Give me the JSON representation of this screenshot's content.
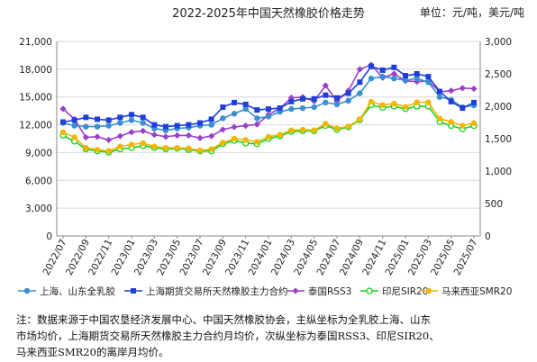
{
  "header": {
    "title": "2022-2025年中国天然橡胶价格走势",
    "unit": "单位：元/吨，美元/吨"
  },
  "note": {
    "lines": [
      "注：数据来源于中国农垦经济发展中心、中国天然橡胶协会，主纵坐标为全乳胶上海、山东",
      "市场均价，上海期货交易所天然橡胶主力合约月均价，次纵坐标为泰国RSS3、印尼SIR20、",
      "马来西亚SMR20的离岸月均价。"
    ]
  },
  "chart_data": {
    "type": "line",
    "x": [
      "2022/07",
      "2022/08",
      "2022/09",
      "2022/10",
      "2022/11",
      "2022/12",
      "2023/01",
      "2023/02",
      "2023/03",
      "2023/04",
      "2023/05",
      "2023/06",
      "2023/07",
      "2023/08",
      "2023/09",
      "2023/10",
      "2023/11",
      "2023/12",
      "2024/01",
      "2024/02",
      "2024/03",
      "2024/04",
      "2024/05",
      "2024/06",
      "2024/07",
      "2024/08",
      "2024/09",
      "2024/10",
      "2024/11",
      "2024/12",
      "2025/01",
      "2025/02",
      "2025/03",
      "2025/04",
      "2025/05",
      "2025/06",
      "2025/07"
    ],
    "x_tick_labels": [
      "2022/07",
      "2022/09",
      "2022/11",
      "2023/01",
      "2023/03",
      "2023/05",
      "2023/07",
      "2023/09",
      "2023/11",
      "2024/01",
      "2024/03",
      "2024/05",
      "2024/07",
      "2024/09",
      "2024/11",
      "2025/01",
      "2025/03",
      "2025/05",
      "2025/07"
    ],
    "y_left": {
      "min": 0,
      "max": 21000,
      "ticks": [
        0,
        3000,
        6000,
        9000,
        12000,
        15000,
        18000,
        21000
      ],
      "tick_labels": [
        "0",
        "3,000",
        "6,000",
        "9,000",
        "12,000",
        "15,000",
        "18,000",
        "21,000"
      ]
    },
    "y_right": {
      "min": 0,
      "max": 3000,
      "ticks": [
        0,
        500,
        1000,
        1500,
        2000,
        2500,
        3000
      ],
      "tick_labels": [
        "0",
        "500",
        "1,000",
        "1,500",
        "2,000",
        "2,500",
        "3,000"
      ]
    },
    "grid": "horizontal",
    "legend_position": "bottom",
    "series": [
      {
        "name": "上海、山东全乳胶",
        "axis": "left",
        "marker": "circle",
        "color": "#3a8fd1",
        "values": [
          12200,
          11900,
          11800,
          11800,
          11900,
          12200,
          12500,
          12200,
          11600,
          11400,
          11600,
          11700,
          11900,
          12000,
          12700,
          13200,
          13700,
          12700,
          12900,
          13400,
          13700,
          13800,
          13900,
          14400,
          14200,
          14600,
          15400,
          17000,
          17200,
          17000,
          16800,
          17000,
          16600,
          15000,
          14700,
          13900,
          14100
        ]
      },
      {
        "name": "上海期货交易所天然橡胶主力合约",
        "axis": "left",
        "marker": "square",
        "color": "#1f3fd9",
        "values": [
          12300,
          12500,
          12800,
          12600,
          12500,
          12800,
          13100,
          12800,
          12000,
          11800,
          11900,
          12000,
          12200,
          12600,
          13900,
          14400,
          14200,
          13600,
          13700,
          13800,
          14500,
          14800,
          14800,
          15200,
          14900,
          15400,
          16600,
          18300,
          17900,
          18200,
          17300,
          17500,
          17200,
          15600,
          14500,
          13800,
          14400
        ]
      },
      {
        "name": "泰国RSS3",
        "axis": "right",
        "marker": "diamond",
        "color": "#9b3fc9",
        "values": [
          1960,
          1800,
          1520,
          1530,
          1480,
          1540,
          1600,
          1620,
          1560,
          1530,
          1550,
          1550,
          1510,
          1540,
          1640,
          1680,
          1700,
          1720,
          1870,
          1970,
          2130,
          2140,
          2080,
          2320,
          2080,
          2240,
          2570,
          2640,
          2440,
          2500,
          2390,
          2380,
          2390,
          2220,
          2240,
          2280,
          2270
        ]
      },
      {
        "name": "印尼SIR20",
        "axis": "right",
        "marker": "ring",
        "color": "#1bd11b",
        "values": [
          1550,
          1460,
          1340,
          1310,
          1290,
          1340,
          1360,
          1390,
          1360,
          1340,
          1350,
          1330,
          1310,
          1310,
          1420,
          1470,
          1430,
          1420,
          1500,
          1540,
          1610,
          1620,
          1620,
          1700,
          1640,
          1680,
          1790,
          2020,
          1980,
          2000,
          1960,
          2000,
          2000,
          1760,
          1700,
          1650,
          1700
        ]
      },
      {
        "name": "马来西亚SMR20",
        "axis": "right",
        "marker": "circle",
        "color": "#f2b705",
        "values": [
          1600,
          1520,
          1360,
          1330,
          1310,
          1380,
          1410,
          1430,
          1380,
          1360,
          1360,
          1350,
          1320,
          1340,
          1440,
          1500,
          1480,
          1450,
          1530,
          1560,
          1630,
          1640,
          1630,
          1730,
          1660,
          1690,
          1800,
          2070,
          2020,
          2040,
          1990,
          2060,
          2060,
          1810,
          1760,
          1700,
          1740
        ]
      }
    ]
  }
}
